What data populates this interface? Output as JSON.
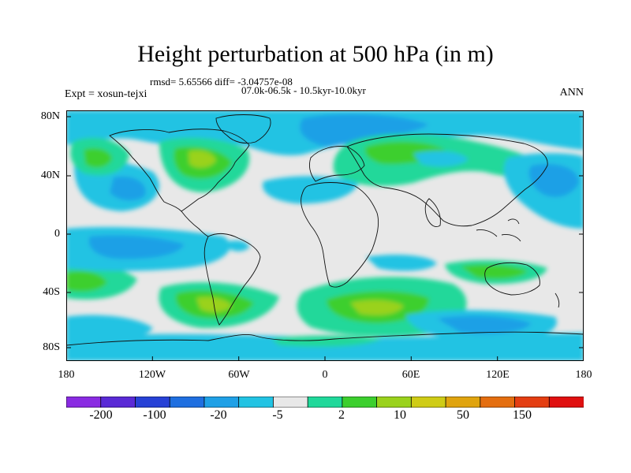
{
  "title": "Height perturbation at 500 hPa (in m)",
  "stats_line": "rmsd= 5.65566 diff= -3.04757e-08",
  "period_line": "07.0k-06.5k - 10.5kyr-10.0kyr",
  "experiment": "Expt = xosun-tejxi",
  "season": "ANN",
  "y_ticks": [
    "80N",
    "40N",
    "0",
    "40S",
    "80S"
  ],
  "x_ticks": [
    "180",
    "120W",
    "60W",
    "0",
    "60E",
    "120E",
    "180"
  ],
  "colorbar": {
    "labels": [
      "-200",
      "-100",
      "-20",
      "-5",
      "2",
      "10",
      "50",
      "150"
    ],
    "colors": [
      "#8a2be2",
      "#5a2ad6",
      "#2741d6",
      "#1f6fe0",
      "#1fa0e6",
      "#22c3e3",
      "#e8e8e8",
      "#20d89a",
      "#3ccf2e",
      "#9ad21c",
      "#cfcc16",
      "#e0a40e",
      "#e46e10",
      "#e43e12",
      "#e01010"
    ]
  },
  "field_colors": {
    "neutral": "#e8e8e8",
    "neg_weak": "#22c3e3",
    "neg_mid": "#1fa0e6",
    "neg_strong": "#1f6fe0",
    "pos_weak": "#20d89a",
    "pos_mid": "#3ccf2e",
    "pos_strong": "#9ad21c",
    "pos_peak": "#cfcc16"
  }
}
